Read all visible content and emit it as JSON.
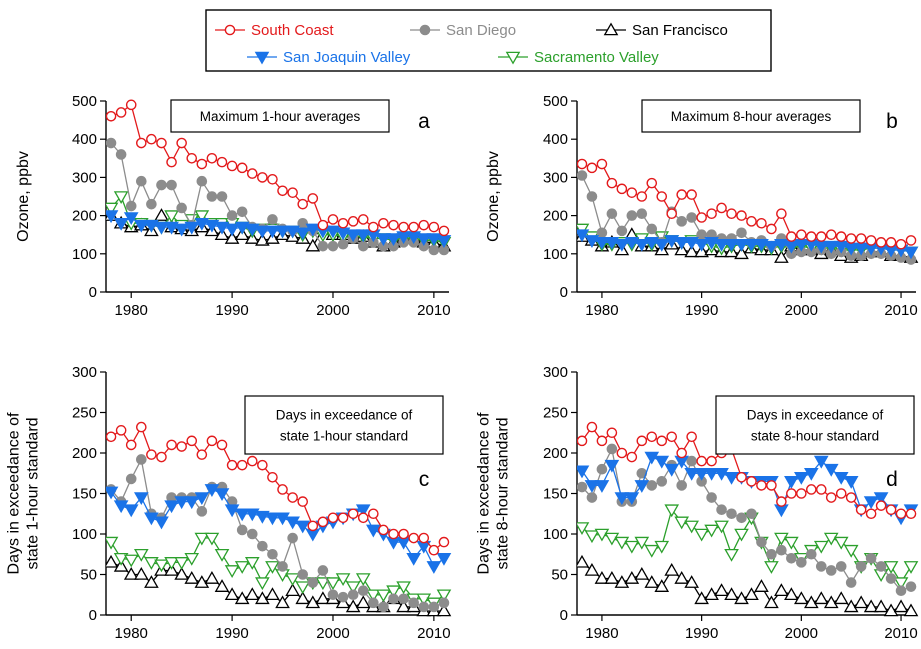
{
  "legend": {
    "items": [
      {
        "series": "South Coast",
        "label": "South Coast",
        "color": "#e31a1c",
        "marker": "circle-open"
      },
      {
        "series": "San Diego",
        "label": "San Diego",
        "color": "#8c8c8c",
        "marker": "circle-filled"
      },
      {
        "series": "San Francisco",
        "label": "San Francisco",
        "color": "#000000",
        "marker": "triangle-up-open"
      },
      {
        "series": "San Joaquin Valley",
        "label": "San Joaquin Valley",
        "color": "#1a73e8",
        "marker": "triangle-down-filled"
      },
      {
        "series": "Sacramento Valley",
        "label": "Sacramento Valley",
        "color": "#2ca02c",
        "marker": "triangle-down-open"
      }
    ]
  },
  "chart_data": [
    {
      "id": "a",
      "type": "line",
      "panel_letter": "a",
      "annotation": [
        "Maximum 1-hour averages"
      ],
      "ylabel": [
        "Ozone, ppbv"
      ],
      "xlim": [
        1977.5,
        2011.5
      ],
      "ylim": [
        0,
        500
      ],
      "xticks": [
        1980,
        1990,
        2000,
        2010
      ],
      "yticks": [
        0,
        100,
        200,
        300,
        400,
        500
      ],
      "grid": false,
      "x": [
        1978,
        1979,
        1980,
        1981,
        1982,
        1983,
        1984,
        1985,
        1986,
        1987,
        1988,
        1989,
        1990,
        1991,
        1992,
        1993,
        1994,
        1995,
        1996,
        1997,
        1998,
        1999,
        2000,
        2001,
        2002,
        2003,
        2004,
        2005,
        2006,
        2007,
        2008,
        2009,
        2010,
        2011
      ],
      "series": [
        {
          "name": "South Coast",
          "values": [
            460,
            470,
            490,
            390,
            400,
            390,
            340,
            390,
            350,
            335,
            350,
            340,
            330,
            325,
            310,
            300,
            295,
            265,
            260,
            230,
            245,
            175,
            190,
            180,
            185,
            190,
            170,
            180,
            175,
            170,
            170,
            175,
            170,
            160
          ]
        },
        {
          "name": "San Diego",
          "values": [
            390,
            360,
            225,
            290,
            230,
            280,
            280,
            220,
            175,
            290,
            250,
            250,
            200,
            210,
            170,
            165,
            190,
            165,
            160,
            180,
            160,
            120,
            120,
            125,
            140,
            120,
            130,
            120,
            120,
            130,
            130,
            120,
            110,
            110
          ]
        },
        {
          "name": "San Francisco",
          "values": [
            200,
            180,
            170,
            175,
            160,
            200,
            170,
            165,
            160,
            170,
            160,
            150,
            140,
            150,
            140,
            135,
            140,
            150,
            145,
            140,
            120,
            165,
            150,
            150,
            140,
            145,
            130,
            120,
            130,
            140,
            140,
            130,
            130,
            120
          ]
        },
        {
          "name": "San Joaquin Valley",
          "values": [
            200,
            180,
            195,
            175,
            175,
            170,
            170,
            165,
            170,
            180,
            175,
            170,
            165,
            170,
            165,
            160,
            160,
            160,
            160,
            155,
            165,
            160,
            160,
            155,
            150,
            150,
            150,
            140,
            140,
            145,
            145,
            140,
            140,
            135
          ]
        },
        {
          "name": "Sacramento Valley",
          "values": [
            220,
            250,
            180,
            180,
            175,
            170,
            200,
            175,
            190,
            200,
            180,
            180,
            180,
            170,
            160,
            165,
            165,
            160,
            160,
            150,
            160,
            150,
            150,
            145,
            145,
            145,
            140,
            140,
            135,
            140,
            140,
            135,
            135,
            130
          ]
        }
      ]
    },
    {
      "id": "b",
      "type": "line",
      "panel_letter": "b",
      "annotation": [
        "Maximum 8-hour averages"
      ],
      "ylabel": [
        "Ozone, ppbv"
      ],
      "xlim": [
        1977.5,
        2011.5
      ],
      "ylim": [
        0,
        500
      ],
      "xticks": [
        1980,
        1990,
        2000,
        2010
      ],
      "yticks": [
        0,
        100,
        200,
        300,
        400,
        500
      ],
      "grid": false,
      "x": [
        1978,
        1979,
        1980,
        1981,
        1982,
        1983,
        1984,
        1985,
        1986,
        1987,
        1988,
        1989,
        1990,
        1991,
        1992,
        1993,
        1994,
        1995,
        1996,
        1997,
        1998,
        1999,
        2000,
        2001,
        2002,
        2003,
        2004,
        2005,
        2006,
        2007,
        2008,
        2009,
        2010,
        2011
      ],
      "series": [
        {
          "name": "South Coast",
          "values": [
            335,
            325,
            335,
            285,
            270,
            260,
            250,
            285,
            250,
            205,
            255,
            255,
            195,
            205,
            220,
            205,
            200,
            185,
            180,
            165,
            205,
            145,
            150,
            145,
            145,
            150,
            145,
            140,
            140,
            135,
            130,
            130,
            125,
            135
          ]
        },
        {
          "name": "San Diego",
          "values": [
            305,
            250,
            155,
            205,
            160,
            200,
            205,
            165,
            130,
            210,
            185,
            195,
            150,
            150,
            140,
            140,
            155,
            130,
            135,
            120,
            140,
            100,
            105,
            105,
            110,
            100,
            105,
            95,
            95,
            100,
            100,
            95,
            90,
            85
          ]
        },
        {
          "name": "San Francisco",
          "values": [
            145,
            135,
            120,
            130,
            110,
            150,
            120,
            120,
            110,
            125,
            110,
            105,
            105,
            110,
            105,
            105,
            100,
            115,
            110,
            110,
            90,
            120,
            110,
            110,
            100,
            110,
            95,
            90,
            95,
            105,
            105,
            95,
            95,
            90
          ]
        },
        {
          "name": "San Joaquin Valley",
          "values": [
            150,
            135,
            130,
            130,
            125,
            130,
            125,
            130,
            125,
            135,
            130,
            130,
            125,
            130,
            125,
            125,
            125,
            125,
            125,
            120,
            125,
            120,
            125,
            125,
            120,
            120,
            120,
            115,
            115,
            115,
            115,
            110,
            110,
            105
          ]
        },
        {
          "name": "Sacramento Valley",
          "values": [
            165,
            145,
            125,
            125,
            130,
            125,
            140,
            125,
            145,
            135,
            130,
            135,
            130,
            120,
            115,
            120,
            125,
            120,
            120,
            115,
            120,
            115,
            120,
            115,
            115,
            115,
            110,
            110,
            110,
            115,
            115,
            110,
            110,
            105
          ]
        }
      ]
    },
    {
      "id": "c",
      "type": "line",
      "panel_letter": "c",
      "annotation": [
        "Days in exceedance of",
        "state 1-hour standard"
      ],
      "ylabel": [
        "Days in exceedance of",
        "state 1-hour standard"
      ],
      "xlim": [
        1977.5,
        2011.5
      ],
      "ylim": [
        0,
        300
      ],
      "xticks": [
        1980,
        1990,
        2000,
        2010
      ],
      "yticks": [
        0,
        50,
        100,
        150,
        200,
        250,
        300
      ],
      "grid": false,
      "x": [
        1978,
        1979,
        1980,
        1981,
        1982,
        1983,
        1984,
        1985,
        1986,
        1987,
        1988,
        1989,
        1990,
        1991,
        1992,
        1993,
        1994,
        1995,
        1996,
        1997,
        1998,
        1999,
        2000,
        2001,
        2002,
        2003,
        2004,
        2005,
        2006,
        2007,
        2008,
        2009,
        2010,
        2011
      ],
      "series": [
        {
          "name": "South Coast",
          "values": [
            220,
            228,
            210,
            232,
            198,
            195,
            210,
            208,
            215,
            198,
            215,
            210,
            185,
            185,
            190,
            185,
            170,
            155,
            145,
            140,
            110,
            115,
            120,
            120,
            125,
            120,
            125,
            105,
            100,
            100,
            95,
            95,
            80,
            90
          ]
        },
        {
          "name": "San Diego",
          "values": [
            155,
            140,
            168,
            192,
            125,
            120,
            145,
            145,
            145,
            128,
            158,
            158,
            140,
            105,
            100,
            85,
            75,
            60,
            95,
            50,
            40,
            55,
            25,
            22,
            25,
            30,
            15,
            10,
            20,
            20,
            15,
            10,
            10,
            15
          ]
        },
        {
          "name": "San Francisco",
          "values": [
            65,
            60,
            50,
            50,
            40,
            55,
            55,
            50,
            45,
            40,
            45,
            35,
            25,
            20,
            25,
            20,
            25,
            15,
            30,
            20,
            15,
            20,
            20,
            15,
            10,
            15,
            10,
            10,
            20,
            10,
            10,
            5,
            5,
            5
          ]
        },
        {
          "name": "San Joaquin Valley",
          "values": [
            152,
            135,
            130,
            145,
            120,
            115,
            135,
            140,
            140,
            145,
            155,
            150,
            130,
            125,
            125,
            122,
            120,
            120,
            115,
            110,
            100,
            110,
            115,
            120,
            125,
            130,
            105,
            100,
            90,
            90,
            70,
            85,
            60,
            70
          ]
        },
        {
          "name": "Sacramento Valley",
          "values": [
            90,
            70,
            68,
            75,
            65,
            62,
            65,
            65,
            70,
            95,
            95,
            75,
            55,
            60,
            65,
            40,
            60,
            50,
            45,
            35,
            40,
            40,
            40,
            45,
            35,
            45,
            25,
            25,
            30,
            35,
            20,
            20,
            15,
            25
          ]
        }
      ]
    },
    {
      "id": "d",
      "type": "line",
      "panel_letter": "d",
      "annotation": [
        "Days in exceedance of",
        "state 8-hour standard"
      ],
      "ylabel": [
        "Days in exceedance of",
        "state 8-hour standard"
      ],
      "xlim": [
        1977.5,
        2011.5
      ],
      "ylim": [
        0,
        300
      ],
      "xticks": [
        1980,
        1990,
        2000,
        2010
      ],
      "yticks": [
        0,
        50,
        100,
        150,
        200,
        250,
        300
      ],
      "grid": false,
      "x": [
        1978,
        1979,
        1980,
        1981,
        1982,
        1983,
        1984,
        1985,
        1986,
        1987,
        1988,
        1989,
        1990,
        1991,
        1992,
        1993,
        1994,
        1995,
        1996,
        1997,
        1998,
        1999,
        2000,
        2001,
        2002,
        2003,
        2004,
        2005,
        2006,
        2007,
        2008,
        2009,
        2010,
        2011
      ],
      "series": [
        {
          "name": "South Coast",
          "values": [
            215,
            232,
            215,
            225,
            200,
            195,
            215,
            220,
            215,
            220,
            200,
            220,
            190,
            190,
            200,
            205,
            170,
            165,
            160,
            160,
            140,
            150,
            150,
            155,
            155,
            145,
            150,
            145,
            130,
            125,
            135,
            130,
            125,
            125
          ]
        },
        {
          "name": "San Diego",
          "values": [
            158,
            145,
            180,
            205,
            140,
            140,
            175,
            160,
            165,
            185,
            160,
            190,
            165,
            145,
            130,
            125,
            120,
            125,
            90,
            75,
            80,
            70,
            65,
            75,
            60,
            55,
            60,
            40,
            60,
            70,
            60,
            45,
            30,
            35
          ]
        },
        {
          "name": "San Francisco",
          "values": [
            65,
            55,
            45,
            45,
            40,
            45,
            50,
            40,
            35,
            55,
            45,
            40,
            20,
            25,
            30,
            25,
            20,
            25,
            35,
            15,
            30,
            25,
            20,
            15,
            20,
            15,
            20,
            10,
            15,
            10,
            10,
            5,
            10,
            5
          ]
        },
        {
          "name": "San Joaquin Valley",
          "values": [
            178,
            160,
            160,
            185,
            145,
            145,
            160,
            195,
            190,
            180,
            190,
            175,
            175,
            175,
            175,
            170,
            170,
            165,
            165,
            165,
            130,
            165,
            170,
            175,
            190,
            180,
            170,
            165,
            130,
            140,
            145,
            130,
            120,
            130
          ]
        },
        {
          "name": "Sacramento Valley",
          "values": [
            108,
            98,
            100,
            95,
            90,
            85,
            90,
            80,
            85,
            130,
            115,
            110,
            100,
            105,
            110,
            75,
            100,
            120,
            90,
            60,
            95,
            90,
            70,
            80,
            85,
            95,
            90,
            80,
            60,
            70,
            50,
            60,
            40,
            60
          ]
        }
      ]
    }
  ]
}
